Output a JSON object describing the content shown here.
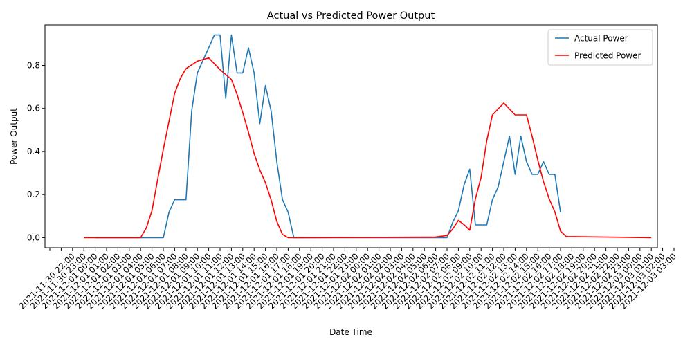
{
  "chart_data": {
    "type": "line",
    "title": "Actual vs Predicted Power Output",
    "xlabel": "Date Time",
    "ylabel": "Power Output",
    "ylim": [
      -0.047,
      0.988
    ],
    "yticks": [
      "0.0",
      "0.2",
      "0.4",
      "0.6",
      "0.8"
    ],
    "grid": false,
    "legend_position": "top-right",
    "x_tick_labels": [
      "2021-11-30 22:00",
      "2021-11-30 23:00",
      "2021-12-01 00:00",
      "2021-12-01 01:00",
      "2021-12-01 02:00",
      "2021-12-01 03:00",
      "2021-12-01 04:00",
      "2021-12-01 05:00",
      "2021-12-01 06:00",
      "2021-12-01 07:00",
      "2021-12-01 08:00",
      "2021-12-01 09:00",
      "2021-12-01 10:00",
      "2021-12-01 11:00",
      "2021-12-01 12:00",
      "2021-12-01 13:00",
      "2021-12-01 14:00",
      "2021-12-01 15:00",
      "2021-12-01 16:00",
      "2021-12-01 17:00",
      "2021-12-01 18:00",
      "2021-12-01 19:00",
      "2021-12-01 20:00",
      "2021-12-01 21:00",
      "2021-12-01 22:00",
      "2021-12-01 23:00",
      "2021-12-02 00:00",
      "2021-12-02 01:00",
      "2021-12-02 02:00",
      "2021-12-02 03:00",
      "2021-12-02 04:00",
      "2021-12-02 05:00",
      "2021-12-02 06:00",
      "2021-12-02 07:00",
      "2021-12-02 08:00",
      "2021-12-02 09:00",
      "2021-12-02 10:00",
      "2021-12-02 11:00",
      "2021-12-02 12:00",
      "2021-12-02 13:00",
      "2021-12-02 14:00",
      "2021-12-02 15:00",
      "2021-12-02 16:00",
      "2021-12-02 17:00",
      "2021-12-02 18:00",
      "2021-12-02 19:00",
      "2021-12-02 20:00",
      "2021-12-02 21:00",
      "2021-12-02 22:00",
      "2021-12-02 23:00",
      "2021-12-03 00:00",
      "2021-12-03 01:00",
      "2021-12-03 02:00",
      "2021-12-03 03:00"
    ],
    "series": [
      {
        "name": "Actual Power",
        "color": "#1f77b4",
        "x": [
          "2021-12-01 00:00",
          "2021-12-01 05:00",
          "2021-12-01 06:00",
          "2021-12-01 06:30",
          "2021-12-01 07:00",
          "2021-12-01 07:30",
          "2021-12-01 08:00",
          "2021-12-01 08:30",
          "2021-12-01 09:00",
          "2021-12-01 09:30",
          "2021-12-01 10:00",
          "2021-12-01 10:30",
          "2021-12-01 11:00",
          "2021-12-01 11:30",
          "2021-12-01 12:00",
          "2021-12-01 12:30",
          "2021-12-01 13:00",
          "2021-12-01 13:30",
          "2021-12-01 14:00",
          "2021-12-01 14:30",
          "2021-12-01 15:00",
          "2021-12-01 15:30",
          "2021-12-01 16:00",
          "2021-12-01 16:30",
          "2021-12-01 17:00",
          "2021-12-01 17:30",
          "2021-12-01 18:00",
          "2021-12-02 07:00",
          "2021-12-02 07:30",
          "2021-12-02 08:00",
          "2021-12-02 08:30",
          "2021-12-02 09:00",
          "2021-12-02 09:30",
          "2021-12-02 10:00",
          "2021-12-02 10:30",
          "2021-12-02 11:00",
          "2021-12-02 11:30",
          "2021-12-02 12:00",
          "2021-12-02 12:30",
          "2021-12-02 13:00",
          "2021-12-02 13:30",
          "2021-12-02 14:00",
          "2021-12-02 14:30",
          "2021-12-02 15:00",
          "2021-12-02 15:30",
          "2021-12-02 16:00",
          "2021-12-02 16:30",
          "2021-12-02 17:00"
        ],
        "values": [
          0.0,
          0.0,
          0.0,
          0.118,
          0.176,
          0.176,
          0.176,
          0.588,
          0.765,
          0.824,
          0.882,
          0.941,
          0.941,
          0.647,
          0.941,
          0.765,
          0.765,
          0.882,
          0.765,
          0.529,
          0.706,
          0.588,
          0.353,
          0.176,
          0.118,
          0.0,
          0.0,
          0.0,
          0.071,
          0.125,
          0.245,
          0.318,
          0.059,
          0.059,
          0.059,
          0.176,
          0.235,
          0.353,
          0.471,
          0.294,
          0.471,
          0.353,
          0.294,
          0.294,
          0.353,
          0.294,
          0.294,
          0.118
        ]
      },
      {
        "name": "Predicted Power",
        "color": "#ff0000",
        "x": [
          "2021-11-30 23:00",
          "2021-12-01 04:00",
          "2021-12-01 04:30",
          "2021-12-01 05:00",
          "2021-12-01 05:30",
          "2021-12-01 06:00",
          "2021-12-01 06:30",
          "2021-12-01 07:00",
          "2021-12-01 07:30",
          "2021-12-01 08:00",
          "2021-12-01 09:00",
          "2021-12-01 10:00",
          "2021-12-01 11:00",
          "2021-12-01 12:00",
          "2021-12-01 12:30",
          "2021-12-01 13:00",
          "2021-12-01 13:30",
          "2021-12-01 14:00",
          "2021-12-01 14:30",
          "2021-12-01 15:00",
          "2021-12-01 15:30",
          "2021-12-01 16:00",
          "2021-12-01 16:30",
          "2021-12-01 17:00",
          "2021-12-01 18:00",
          "2021-12-02 06:00",
          "2021-12-02 07:00",
          "2021-12-02 07:30",
          "2021-12-02 08:00",
          "2021-12-02 08:30",
          "2021-12-02 09:00",
          "2021-12-02 09:30",
          "2021-12-02 10:00",
          "2021-12-02 10:30",
          "2021-12-02 11:00",
          "2021-12-02 12:00",
          "2021-12-02 13:00",
          "2021-12-02 13:30",
          "2021-12-02 14:00",
          "2021-12-02 14:30",
          "2021-12-02 15:00",
          "2021-12-02 15:30",
          "2021-12-02 16:00",
          "2021-12-02 16:30",
          "2021-12-02 17:00",
          "2021-12-02 17:30",
          "2021-12-03 01:00"
        ],
        "values": [
          0.0,
          0.0,
          0.045,
          0.125,
          0.27,
          0.41,
          0.54,
          0.67,
          0.74,
          0.785,
          0.82,
          0.835,
          0.78,
          0.735,
          0.665,
          0.58,
          0.49,
          0.39,
          0.315,
          0.255,
          0.175,
          0.075,
          0.015,
          0.0,
          0.0,
          0.003,
          0.01,
          0.04,
          0.08,
          0.06,
          0.035,
          0.18,
          0.28,
          0.45,
          0.57,
          0.625,
          0.57,
          0.57,
          0.57,
          0.47,
          0.36,
          0.26,
          0.18,
          0.12,
          0.03,
          0.005,
          0.0
        ]
      }
    ]
  }
}
